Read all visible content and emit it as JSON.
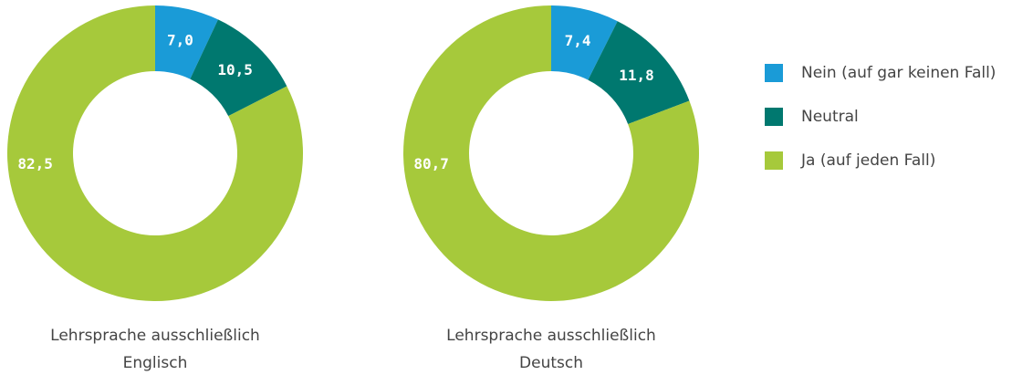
{
  "chart_data": [
    {
      "type": "pie",
      "title": [
        "Lehrsprache ausschließlich",
        "Englisch"
      ],
      "categories": [
        "Nein (auf gar keinen Fall)",
        "Neutral",
        "Ja (auf jeden Fall)"
      ],
      "values": [
        7.0,
        10.5,
        82.5
      ],
      "value_labels": [
        "7,0",
        "10,5",
        "82,5"
      ],
      "colors": [
        "#1a9bd7",
        "#00786f",
        "#a6c93b"
      ],
      "donut": true
    },
    {
      "type": "pie",
      "title": [
        "Lehrsprache ausschließlich",
        "Deutsch"
      ],
      "categories": [
        "Nein (auf gar keinen Fall)",
        "Neutral",
        "Ja (auf jeden Fall)"
      ],
      "values": [
        7.4,
        11.8,
        80.7
      ],
      "value_labels": [
        "7,4",
        "11,8",
        "80,7"
      ],
      "colors": [
        "#1a9bd7",
        "#00786f",
        "#a6c93b"
      ],
      "donut": true
    }
  ]
}
